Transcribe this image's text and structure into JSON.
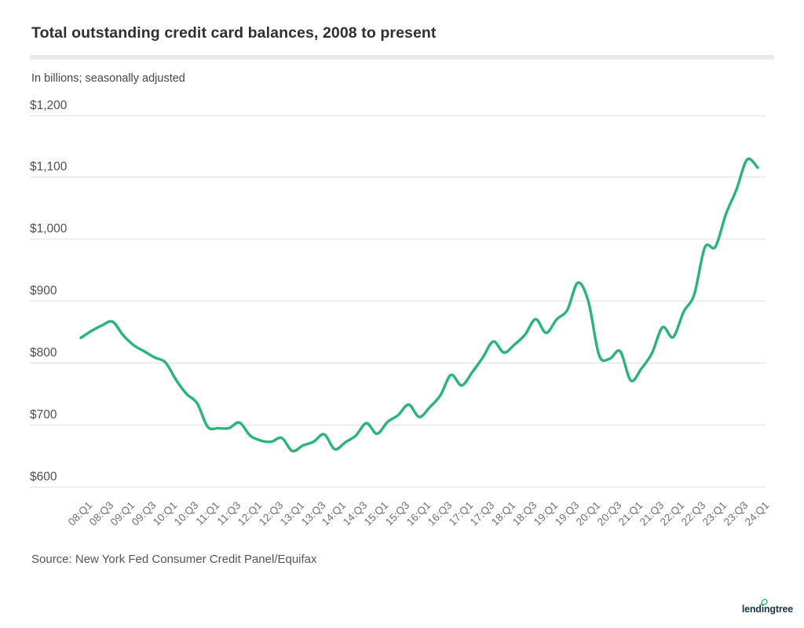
{
  "header": {
    "title": "Total outstanding credit card balances, 2008 to present",
    "subtitle": "In billions; seasonally adjusted"
  },
  "footer": {
    "source": "Source: New York Fed Consumer Credit Panel/Equifax",
    "logo_text": "lendingtree"
  },
  "colors": {
    "line": "#2ab576",
    "grid": "#e2e2e2",
    "divider": "#e9e9e9",
    "logo_navy": "#1b3547",
    "leaf_green": "#2ab576"
  },
  "chart_data": {
    "type": "line",
    "title": "Total outstanding credit card balances, 2008 to present",
    "subtitle": "In billions; seasonally adjusted",
    "unit": "USD billions",
    "grid": true,
    "legend": false,
    "ylim": [
      600,
      1200
    ],
    "y_tick_labels": [
      "$1,200",
      "$1,100",
      "$1,000",
      "$900",
      "$800",
      "$700",
      "$600"
    ],
    "x_tick_step": 2,
    "x_tick_labels": [
      "08:Q1",
      "08:Q3",
      "09:Q1",
      "09:Q3",
      "10:Q1",
      "10:Q3",
      "11:Q1",
      "11:Q3",
      "12:Q1",
      "12:Q3",
      "13:Q1",
      "13:Q3",
      "14:Q1",
      "14:Q3",
      "15:Q1",
      "15:Q3",
      "16:Q1",
      "16:Q3",
      "17:Q1",
      "17:Q3",
      "18:Q1",
      "18:Q3",
      "19:Q1",
      "19:Q3",
      "20:Q1",
      "20:Q3",
      "21:Q1",
      "21:Q3",
      "22:Q1",
      "22:Q3",
      "23:Q1",
      "23:Q3",
      "24:Q1"
    ],
    "series": [
      {
        "name": "Total outstanding credit card balances ($B, quarterly, 2008Q1-2024Q1)",
        "values": [
          840,
          851,
          860,
          866,
          844,
          828,
          818,
          808,
          800,
          772,
          749,
          734,
          696,
          694,
          694,
          703,
          682,
          674,
          672,
          678,
          657,
          666,
          672,
          684,
          660,
          671,
          682,
          702,
          685,
          704,
          715,
          732,
          712,
          728,
          747,
          780,
          763,
          784,
          808,
          834,
          816,
          829,
          845,
          870,
          848,
          870,
          885,
          929,
          898,
          812,
          806,
          818,
          771,
          790,
          815,
          857,
          841,
          882,
          910,
          986,
          987,
          1040,
          1080,
          1128,
          1115
        ]
      }
    ]
  }
}
